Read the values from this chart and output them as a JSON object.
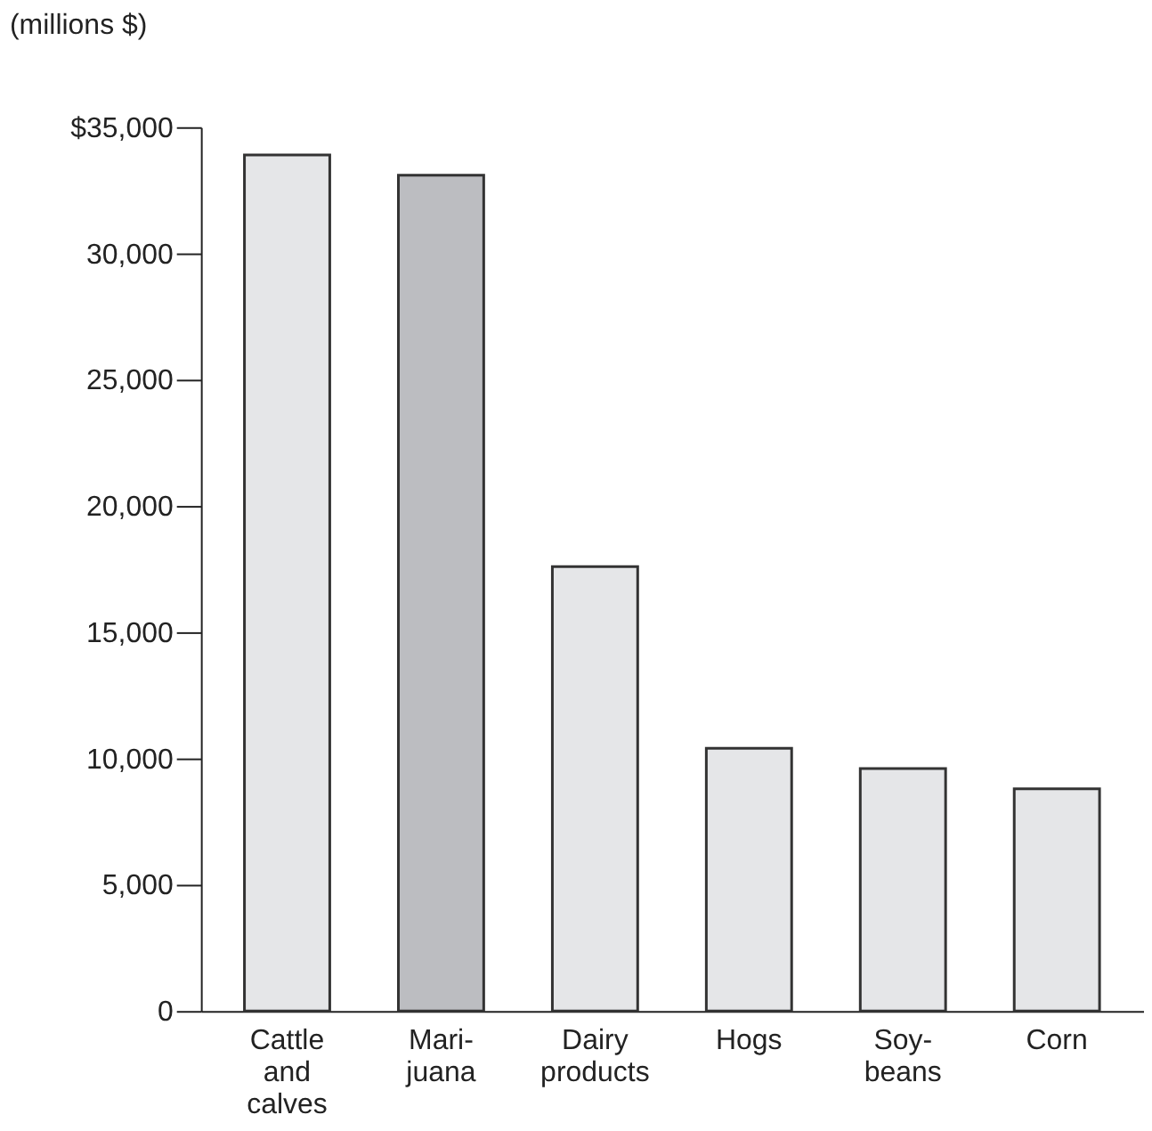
{
  "chart_data": {
    "type": "bar",
    "ylabel": "(millions $)",
    "categories": [
      "Cattle\nand\ncalves",
      "Mari-\njuana",
      "Dairy\nproducts",
      "Hogs",
      "Soy-\nbeans",
      "Corn"
    ],
    "values": [
      33900,
      33100,
      17600,
      10400,
      9600,
      8800
    ],
    "colors": [
      "#e5e6e8",
      "#bcbdc1",
      "#e5e6e8",
      "#e5e6e8",
      "#e5e6e8",
      "#e5e6e8"
    ],
    "ylim": [
      0,
      35000
    ],
    "yticks": [
      0,
      {
        "value": 5000,
        "label": "5,000"
      },
      {
        "value": 10000,
        "label": "10,000"
      },
      {
        "value": 15000,
        "label": "15,000"
      },
      {
        "value": 20000,
        "label": "20,000"
      },
      {
        "value": 25000,
        "label": "25,000"
      },
      {
        "value": 30000,
        "label": "30,000"
      },
      {
        "value": 35000,
        "label": "$35,000"
      }
    ],
    "grid": false
  }
}
